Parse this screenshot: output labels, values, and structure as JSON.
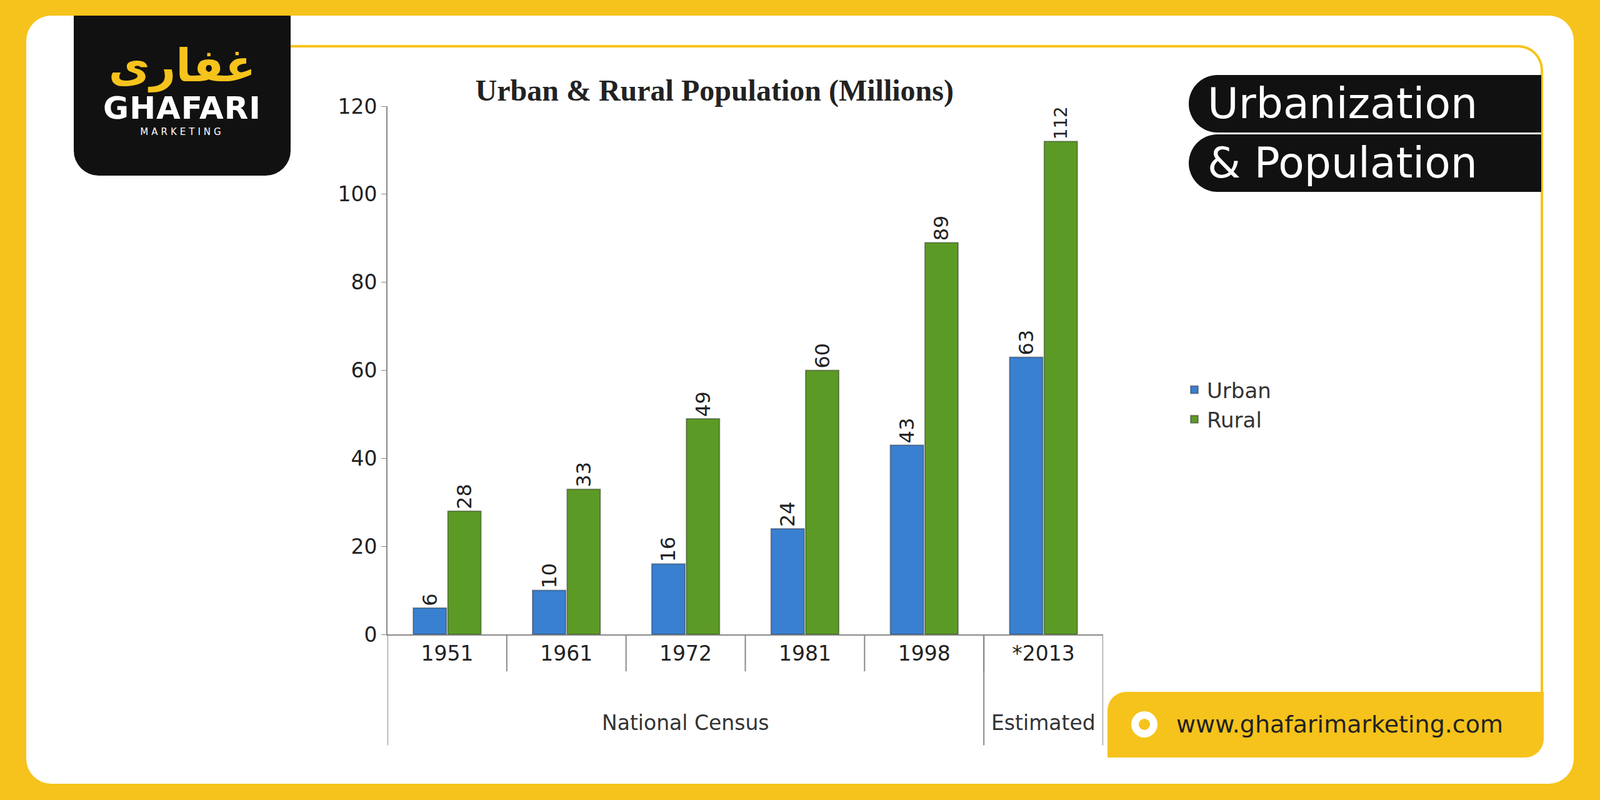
{
  "page": {
    "logo_script": "غفاری",
    "logo_name": "GHAFARI",
    "logo_tagline": "MARKETING",
    "heading": [
      "Urbanization",
      "& Population"
    ],
    "website": "www.ghafarimarketing.com"
  },
  "chart_data": {
    "type": "bar",
    "title": "Urban & Rural Population (Millions)",
    "categories": [
      "1951",
      "1961",
      "1972",
      "1981",
      "1998",
      "*2013"
    ],
    "category_groups": [
      {
        "label": "National Census",
        "categories": [
          "1951",
          "1961",
          "1972",
          "1981",
          "1998"
        ]
      },
      {
        "label": "Estimated",
        "categories": [
          "*2013"
        ]
      }
    ],
    "series": [
      {
        "name": "Urban",
        "color": "#3a80d0",
        "values": [
          6,
          10,
          16,
          24,
          43,
          63
        ]
      },
      {
        "name": "Rural",
        "color": "#5c9a26",
        "values": [
          28,
          33,
          49,
          60,
          89,
          112
        ]
      }
    ],
    "ylim": [
      0,
      120
    ],
    "yticks": [
      0,
      20,
      40,
      60,
      80,
      100,
      120
    ],
    "grid": false,
    "legend": "right",
    "data_labels": true
  }
}
